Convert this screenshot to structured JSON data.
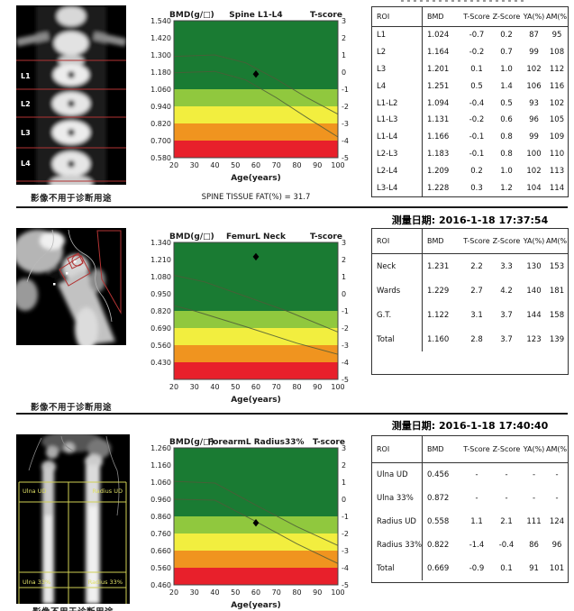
{
  "report": {
    "disclaimer": "影像不用于诊断用途",
    "measure_dates": {
      "femur": "测量日期: 2016-1-18 17:37:54",
      "forearm": "测量日期: 2016-1-18 17:40:40"
    },
    "spine_footnote": "SPINE TISSUE FAT(%) = 31.7"
  },
  "image_labels": {
    "spine": [
      "L1",
      "L2",
      "L3",
      "L4"
    ],
    "forearm": [
      "Ulna UD",
      "Radius UD",
      "Ulna 33%",
      "Radius 33%"
    ]
  },
  "colors": {
    "bands": [
      "#1a7b33",
      "#90c83e",
      "#f2ee3f",
      "#f0941f",
      "#e8202b"
    ],
    "roi_red": "#b23333",
    "roi_yellow": "#cfcf55",
    "point": "#000000"
  },
  "chart_data": [
    {
      "type": "line",
      "title": "Spine L1-L4",
      "ylabel": "BMD(g/□)",
      "y2label": "T-score",
      "xlabel": "Age(years)",
      "xticks": [
        20,
        30,
        40,
        50,
        60,
        70,
        80,
        90,
        100
      ],
      "yticks": [
        "1.540",
        "1.420",
        "1.300",
        "1.180",
        "1.060",
        "0.940",
        "0.820",
        "0.700",
        "0.580"
      ],
      "tticks": [
        "3",
        "2",
        "1",
        "0",
        "-1",
        "-2",
        "-3",
        "-4",
        "-5"
      ],
      "xlim": [
        20,
        100
      ],
      "ylim": [
        0.58,
        1.54
      ],
      "bands_t": [
        [
          3,
          -1,
          "dark_green"
        ],
        [
          -1,
          -2,
          "light_green"
        ],
        [
          -2,
          -3,
          "yellow"
        ],
        [
          -3,
          -4,
          "orange"
        ],
        [
          -4,
          -5,
          "red"
        ]
      ],
      "point": {
        "age": 60,
        "bmd": 1.166,
        "t_score": -0.1
      },
      "ref_curves": [
        [
          [
            20,
            1.29
          ],
          [
            40,
            1.3
          ],
          [
            55,
            1.245
          ],
          [
            70,
            1.13
          ],
          [
            85,
            1.0
          ],
          [
            100,
            0.885
          ]
        ],
        [
          [
            20,
            1.175
          ],
          [
            40,
            1.185
          ],
          [
            55,
            1.125
          ],
          [
            70,
            1.0
          ],
          [
            85,
            0.86
          ],
          [
            100,
            0.725
          ]
        ]
      ],
      "footnote": "SPINE TISSUE FAT(%) = 31.7",
      "grid": false,
      "legend": false
    },
    {
      "type": "line",
      "title": "FemurL Neck",
      "ylabel": "BMD(g/□)",
      "y2label": "T-score",
      "xlabel": "Age(years)",
      "xticks": [
        20,
        30,
        40,
        50,
        60,
        70,
        80,
        90,
        100
      ],
      "yticks": [
        "1.340",
        "1.210",
        "1.080",
        "0.950",
        "0.820",
        "0.690",
        "0.560",
        "0.430"
      ],
      "tticks": [
        "3",
        "2",
        "1",
        "0",
        "-1",
        "-2",
        "-3",
        "-4",
        "-5"
      ],
      "xlim": [
        20,
        100
      ],
      "ylim": [
        0.3,
        1.34
      ],
      "bands_t": [
        [
          3,
          -1,
          "dark_green"
        ],
        [
          -1,
          -2,
          "light_green"
        ],
        [
          -2,
          -3,
          "yellow"
        ],
        [
          -3,
          -4,
          "orange"
        ],
        [
          -4,
          -5,
          "red"
        ]
      ],
      "point": {
        "age": 60,
        "bmd": 1.231,
        "t_score": 2.2
      },
      "ref_curves": [
        [
          [
            20,
            1.09
          ],
          [
            35,
            1.04
          ],
          [
            55,
            0.93
          ],
          [
            75,
            0.82
          ],
          [
            100,
            0.66
          ]
        ],
        [
          [
            20,
            0.86
          ],
          [
            30,
            0.82
          ],
          [
            55,
            0.7
          ],
          [
            80,
            0.575
          ],
          [
            100,
            0.49
          ]
        ]
      ],
      "grid": false,
      "legend": false
    },
    {
      "type": "line",
      "title": "ForearmL Radius33%",
      "ylabel": "BMD(g/□)",
      "y2label": "T-score",
      "xlabel": "Age(years)",
      "xticks": [
        20,
        30,
        40,
        50,
        60,
        70,
        80,
        90,
        100
      ],
      "yticks": [
        "1.260",
        "1.160",
        "1.060",
        "0.960",
        "0.860",
        "0.760",
        "0.660",
        "0.560",
        "0.460"
      ],
      "tticks": [
        "3",
        "2",
        "1",
        "0",
        "-1",
        "-2",
        "-3",
        "-4",
        "-5"
      ],
      "xlim": [
        20,
        100
      ],
      "ylim": [
        0.46,
        1.26
      ],
      "bands_t": [
        [
          3,
          -1,
          "dark_green"
        ],
        [
          -1,
          -2,
          "light_green"
        ],
        [
          -2,
          -3,
          "yellow"
        ],
        [
          -3,
          -4,
          "orange"
        ],
        [
          -4,
          -5,
          "red"
        ]
      ],
      "point": {
        "age": 60,
        "bmd": 0.822,
        "t_score": -1.4
      },
      "ref_curves": [
        [
          [
            20,
            1.065
          ],
          [
            40,
            1.055
          ],
          [
            60,
            0.925
          ],
          [
            80,
            0.8
          ],
          [
            100,
            0.69
          ]
        ],
        [
          [
            20,
            0.96
          ],
          [
            40,
            0.955
          ],
          [
            60,
            0.83
          ],
          [
            80,
            0.7
          ],
          [
            100,
            0.585
          ]
        ]
      ],
      "grid": false,
      "legend": false
    }
  ],
  "tables": [
    {
      "head": [
        [
          "ROI",
          "BMD",
          "T-Score",
          "Z-Score",
          "YA(%)",
          "AM(%)"
        ]
      ],
      "rows": [
        [
          "L1",
          "1.024",
          "-0.7",
          "0.2",
          "87",
          "95"
        ],
        [
          "L2",
          "1.164",
          "-0.2",
          "0.7",
          "99",
          "108"
        ],
        [
          "L3",
          "1.201",
          "0.1",
          "1.0",
          "102",
          "112"
        ],
        [
          "L4",
          "1.251",
          "0.5",
          "1.4",
          "106",
          "116"
        ],
        [
          "L1-L2",
          "1.094",
          "-0.4",
          "0.5",
          "93",
          "102"
        ],
        [
          "L1-L3",
          "1.131",
          "-0.2",
          "0.6",
          "96",
          "105"
        ],
        [
          "L1-L4",
          "1.166",
          "-0.1",
          "0.8",
          "99",
          "109"
        ],
        [
          "L2-L3",
          "1.183",
          "-0.1",
          "0.8",
          "100",
          "110"
        ],
        [
          "L2-L4",
          "1.209",
          "0.2",
          "1.0",
          "102",
          "113"
        ],
        [
          "L3-L4",
          "1.228",
          "0.3",
          "1.2",
          "104",
          "114"
        ]
      ]
    },
    {
      "head": [
        [
          "ROI",
          "BMD",
          "T-Score",
          "Z-Score",
          "YA(%)",
          "AM(%)"
        ]
      ],
      "rows": [
        [
          "Neck",
          "1.231",
          "2.2",
          "3.3",
          "130",
          "153"
        ],
        [
          "Wards",
          "1.229",
          "2.7",
          "4.2",
          "140",
          "181"
        ],
        [
          "G.T.",
          "1.122",
          "3.1",
          "3.7",
          "144",
          "158"
        ],
        [
          "Total",
          "1.160",
          "2.8",
          "3.7",
          "123",
          "139"
        ]
      ]
    },
    {
      "head": [
        [
          "ROI",
          "BMD",
          "T-Score",
          "Z-Score",
          "YA(%)",
          "AM(%)"
        ]
      ],
      "rows": [
        [
          "Ulna UD",
          "0.456",
          "-",
          "-",
          "-",
          "-"
        ],
        [
          "Ulna 33%",
          "0.872",
          "-",
          "-",
          "-",
          "-"
        ],
        [
          "Radius UD",
          "0.558",
          "1.1",
          "2.1",
          "111",
          "124"
        ],
        [
          "Radius 33%",
          "0.822",
          "-1.4",
          "-0.4",
          "86",
          "96"
        ],
        [
          "Total",
          "0.669",
          "-0.9",
          "0.1",
          "91",
          "101"
        ]
      ]
    }
  ]
}
